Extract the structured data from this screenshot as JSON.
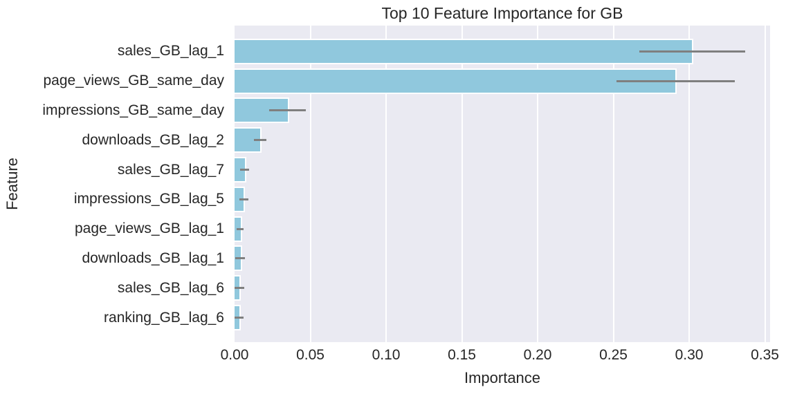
{
  "chart_data": {
    "type": "bar",
    "orientation": "horizontal",
    "title": "Top 10 Feature Importance for GB",
    "xlabel": "Importance",
    "ylabel": "Feature",
    "categories": [
      "sales_GB_lag_1",
      "page_views_GB_same_day",
      "impressions_GB_same_day",
      "downloads_GB_lag_2",
      "sales_GB_lag_7",
      "impressions_GB_lag_5",
      "page_views_GB_lag_1",
      "downloads_GB_lag_1",
      "sales_GB_lag_6",
      "ranking_GB_lag_6"
    ],
    "values": [
      0.302,
      0.291,
      0.035,
      0.017,
      0.007,
      0.006,
      0.004,
      0.004,
      0.003,
      0.003
    ],
    "error_low": [
      0.267,
      0.252,
      0.023,
      0.013,
      0.0035,
      0.0032,
      0.0012,
      0.0005,
      0.0,
      0.0
    ],
    "error_high": [
      0.337,
      0.33,
      0.047,
      0.021,
      0.0096,
      0.0091,
      0.0058,
      0.0068,
      0.0062,
      0.0058
    ],
    "xlim": [
      0,
      0.3534
    ],
    "xtick_values": [
      0.0,
      0.05,
      0.1,
      0.15,
      0.2,
      0.25,
      0.3,
      0.35
    ],
    "xtick_labels": [
      "0.00",
      "0.05",
      "0.10",
      "0.15",
      "0.20",
      "0.25",
      "0.30",
      "0.35"
    ],
    "grid": true,
    "legend": null,
    "colors": {
      "bar": "#90C8DD",
      "bar_edge": "#ffffff",
      "error_bar": "#7f7f7f",
      "plot_background": "#EAEAF2",
      "gridline": "#ffffff",
      "text": "#262626"
    }
  }
}
